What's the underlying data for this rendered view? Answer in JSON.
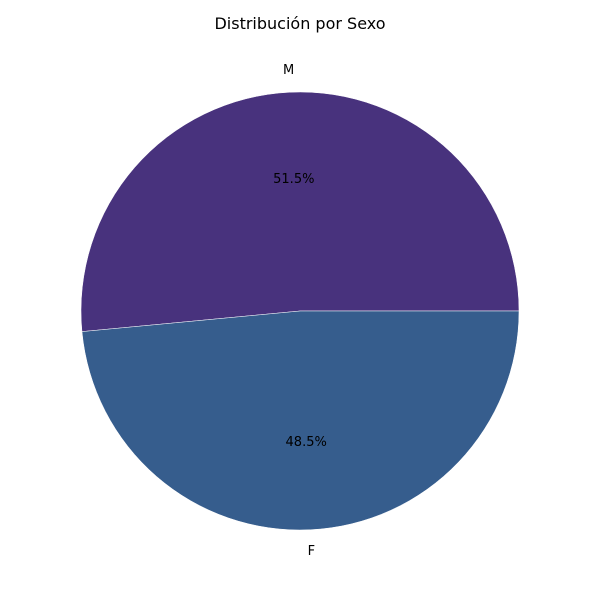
{
  "chart_data": {
    "type": "pie",
    "title": "Distribución por Sexo",
    "slices": [
      {
        "label": "M",
        "pct_label": "51.5%",
        "value": 51.5,
        "color": "#48327d"
      },
      {
        "label": "F",
        "pct_label": "48.5%",
        "value": 48.5,
        "color": "#365d8d"
      }
    ],
    "start_angle": 0,
    "direction": "counterclockwise"
  }
}
